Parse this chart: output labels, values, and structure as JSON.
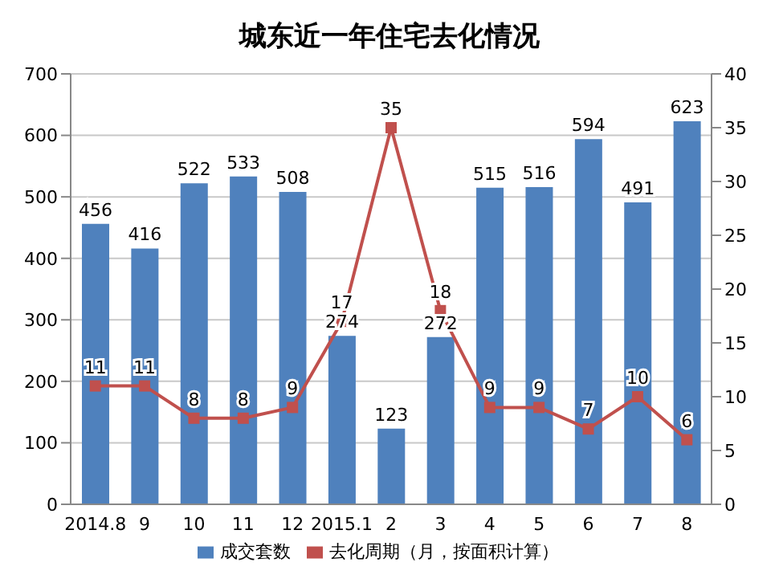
{
  "chart_data": {
    "type": "bar",
    "title": "城东近一年住宅去化情况",
    "categories": [
      "2014.8",
      "9",
      "10",
      "11",
      "12",
      "2015.1",
      "2",
      "3",
      "4",
      "5",
      "6",
      "7",
      "8"
    ],
    "series": [
      {
        "name": "成交套数",
        "color": "#4f81bd",
        "values": [
          456,
          416,
          522,
          533,
          508,
          274,
          123,
          272,
          515,
          516,
          594,
          491,
          623
        ]
      },
      {
        "name": "去化周期（月，按面积计算）",
        "type": "line",
        "axis": "y2",
        "color": "#c0504d",
        "marker": "square",
        "values": [
          11,
          11,
          8,
          8,
          9,
          17,
          35,
          18,
          9,
          9,
          7,
          10,
          6
        ]
      }
    ],
    "ylim": [
      0,
      700
    ],
    "yticks": [
      0,
      100,
      200,
      300,
      400,
      500,
      600,
      700
    ],
    "y2lim": [
      0,
      40
    ],
    "y2ticks": [
      0,
      5,
      10,
      15,
      20,
      25,
      30,
      35,
      40
    ],
    "grid": "y",
    "legend": "bottom",
    "data_labels": true
  }
}
